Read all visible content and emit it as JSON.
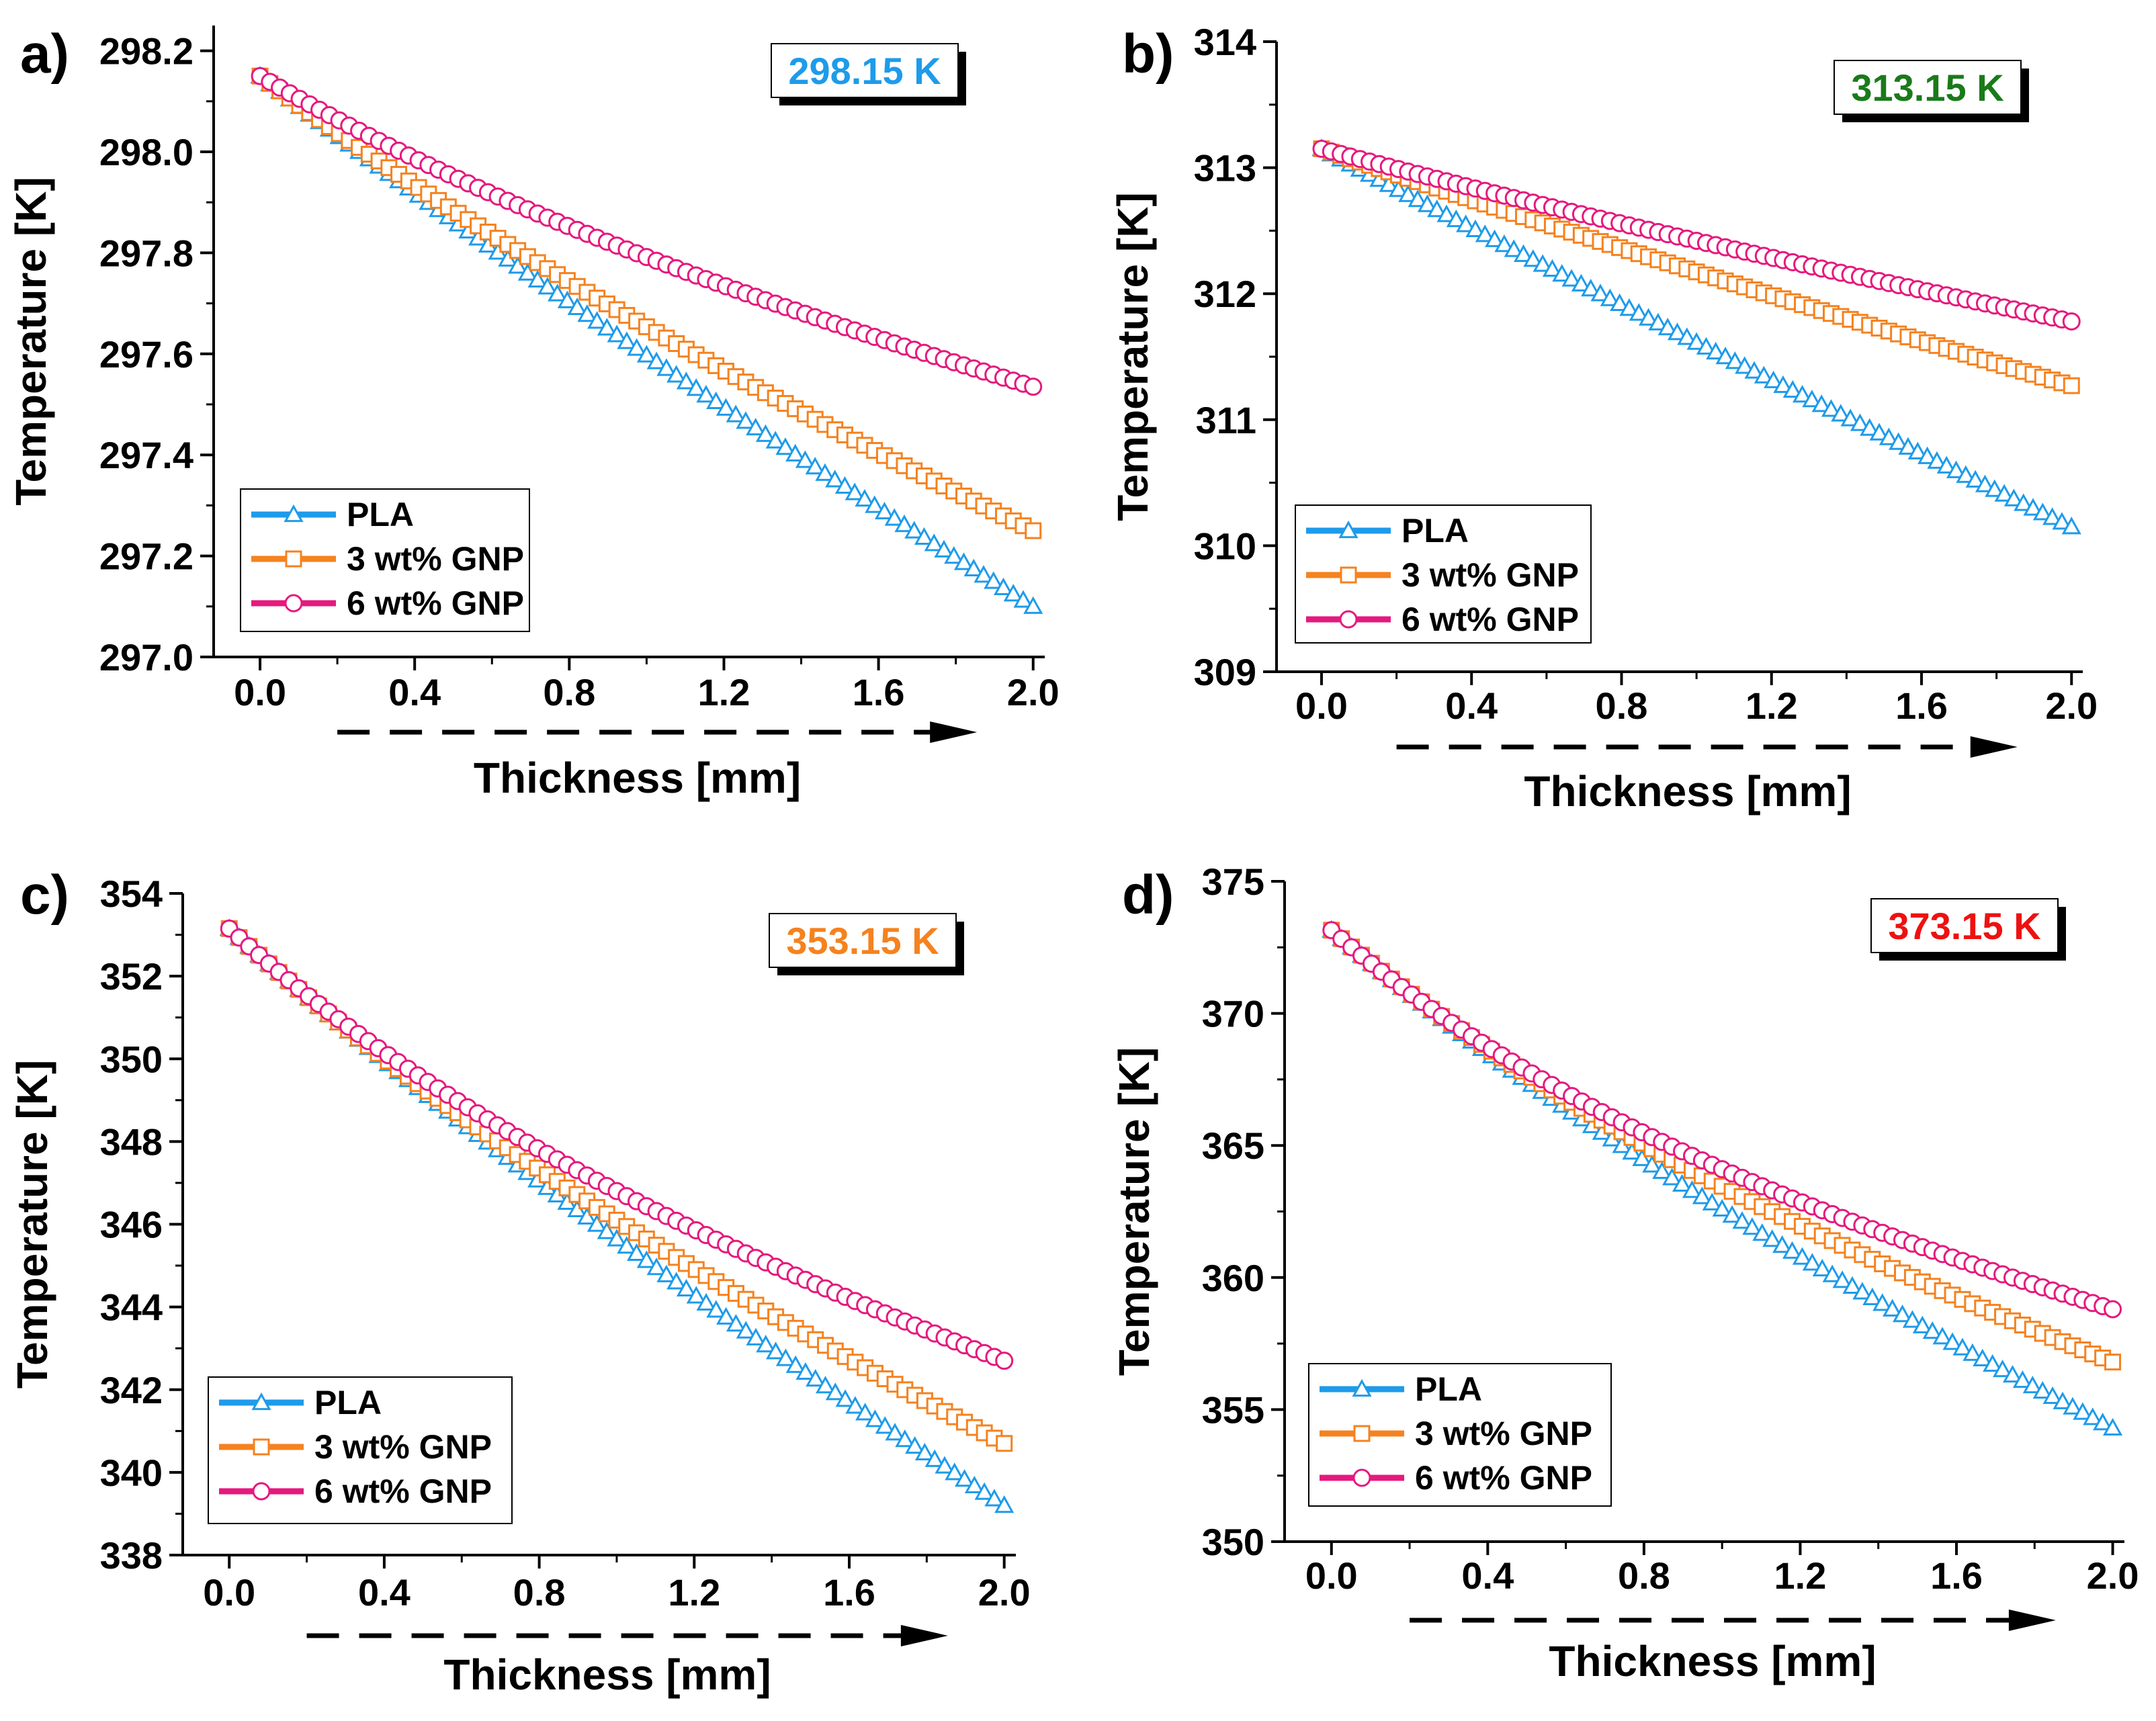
{
  "figure": {
    "description_free": true
  },
  "colors": {
    "pla": "#1E9BEA",
    "gnp3": "#F5821F",
    "gnp6": "#E5197E",
    "axis": "#000000",
    "temp_298": "#1E9BEA",
    "temp_313": "#1A7A1A",
    "temp_353": "#F5821F",
    "temp_373": "#EE1111"
  },
  "chart_data": [
    {
      "panel_label": "a)",
      "type": "line",
      "title_box": "298.15 K",
      "title_color_key": "temp_298",
      "xlabel": "Thickness [mm]",
      "ylabel": "Temperature [K]",
      "xlim": [
        -0.12,
        2.03
      ],
      "ylim": [
        297.0,
        298.25
      ],
      "xticks": [
        0.0,
        0.4,
        0.8,
        1.2,
        1.6,
        2.0
      ],
      "xtick_labels": [
        "0.0",
        "0.4",
        "0.8",
        "1.2",
        "1.6",
        "2.0"
      ],
      "yticks": [
        297.0,
        297.2,
        297.4,
        297.6,
        297.8,
        298.0,
        298.2
      ],
      "ytick_labels": [
        "297.0",
        "297.2",
        "297.4",
        "297.6",
        "297.8",
        "298.0",
        "298.2"
      ],
      "legend_position": "bottom-left",
      "series": [
        {
          "name": "PLA",
          "marker": "triangle",
          "color_key": "pla",
          "start": 298.15,
          "end": 297.1,
          "curvature": 0.15
        },
        {
          "name": "3 wt% GNP",
          "marker": "square",
          "color_key": "gnp3",
          "start": 298.15,
          "end": 297.25,
          "curvature": 0.25
        },
        {
          "name": "6 wt% GNP",
          "marker": "circle",
          "color_key": "gnp6",
          "start": 298.15,
          "end": 297.535,
          "curvature": 0.35
        }
      ]
    },
    {
      "panel_label": "b)",
      "type": "line",
      "title_box": "313.15 K",
      "title_color_key": "temp_313",
      "xlabel": "Thickness [mm]",
      "ylabel": "Temperature [K]",
      "xlim": [
        -0.12,
        2.03
      ],
      "ylim": [
        309,
        314
      ],
      "xticks": [
        0.0,
        0.4,
        0.8,
        1.2,
        1.6,
        2.0
      ],
      "xtick_labels": [
        "0.0",
        "0.4",
        "0.8",
        "1.2",
        "1.6",
        "2.0"
      ],
      "yticks": [
        309,
        310,
        311,
        312,
        313,
        314
      ],
      "ytick_labels": [
        "309",
        "310",
        "311",
        "312",
        "313",
        "314"
      ],
      "legend_position": "bottom-left",
      "series": [
        {
          "name": "PLA",
          "marker": "triangle",
          "color_key": "pla",
          "start": 313.15,
          "end": 310.15,
          "curvature": 0.08
        },
        {
          "name": "3 wt% GNP",
          "marker": "square",
          "color_key": "gnp3",
          "start": 313.15,
          "end": 311.27,
          "curvature": 0.12
        },
        {
          "name": "6 wt% GNP",
          "marker": "circle",
          "color_key": "gnp6",
          "start": 313.15,
          "end": 311.78,
          "curvature": 0.18
        }
      ]
    },
    {
      "panel_label": "c)",
      "type": "line",
      "title_box": "353.15 K",
      "title_color_key": "temp_353",
      "xlabel": "Thickness [mm]",
      "ylabel": "Temperature [K]",
      "xlim": [
        -0.12,
        2.03
      ],
      "ylim": [
        338,
        354
      ],
      "xticks": [
        0.0,
        0.4,
        0.8,
        1.2,
        1.6,
        2.0
      ],
      "xtick_labels": [
        "0.0",
        "0.4",
        "0.8",
        "1.2",
        "1.6",
        "2.0"
      ],
      "yticks": [
        338,
        340,
        342,
        344,
        346,
        348,
        350,
        352,
        354
      ],
      "ytick_labels": [
        "338",
        "340",
        "342",
        "344",
        "346",
        "348",
        "350",
        "352",
        "354"
      ],
      "legend_position": "bottom-left",
      "series": [
        {
          "name": "PLA",
          "marker": "triangle",
          "color_key": "pla",
          "start": 353.15,
          "end": 339.2,
          "curvature": 0.2
        },
        {
          "name": "3 wt% GNP",
          "marker": "square",
          "color_key": "gnp3",
          "start": 353.15,
          "end": 340.7,
          "curvature": 0.3
        },
        {
          "name": "6 wt% GNP",
          "marker": "circle",
          "color_key": "gnp6",
          "start": 353.15,
          "end": 342.7,
          "curvature": 0.42
        }
      ]
    },
    {
      "panel_label": "d)",
      "type": "line",
      "title_box": "373.15 K",
      "title_color_key": "temp_373",
      "xlabel": "Thickness [mm]",
      "ylabel": "Temperature [K]",
      "xlim": [
        -0.12,
        2.03
      ],
      "ylim": [
        350,
        375
      ],
      "xticks": [
        0.0,
        0.4,
        0.8,
        1.2,
        1.6,
        2.0
      ],
      "xtick_labels": [
        "0.0",
        "0.4",
        "0.8",
        "1.2",
        "1.6",
        "2.0"
      ],
      "yticks": [
        350,
        355,
        360,
        365,
        370,
        375
      ],
      "ytick_labels": [
        "350",
        "355",
        "360",
        "365",
        "370",
        "375"
      ],
      "legend_position": "bottom-left",
      "series": [
        {
          "name": "PLA",
          "marker": "triangle",
          "color_key": "pla",
          "start": 373.15,
          "end": 354.3,
          "curvature": 0.28
        },
        {
          "name": "3 wt% GNP",
          "marker": "square",
          "color_key": "gnp3",
          "start": 373.15,
          "end": 356.8,
          "curvature": 0.38
        },
        {
          "name": "6 wt% GNP",
          "marker": "circle",
          "color_key": "gnp6",
          "start": 373.15,
          "end": 358.8,
          "curvature": 0.48
        }
      ]
    }
  ]
}
